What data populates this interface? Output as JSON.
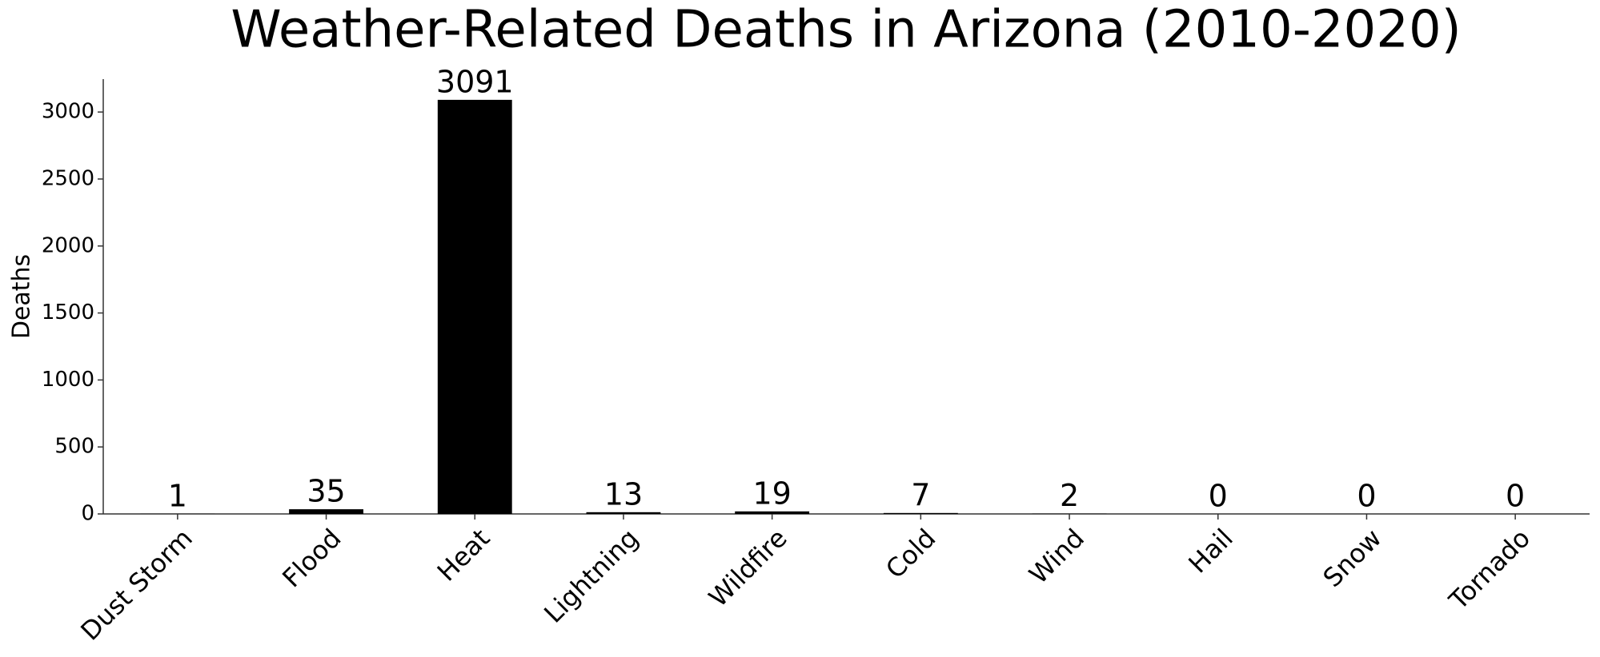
{
  "chart_data": {
    "type": "bar",
    "title": "Weather-Related Deaths in Arizona (2010-2020)",
    "y_label": "Deaths",
    "categories": [
      "Dust Storm",
      "Flood",
      "Heat",
      "Lightning",
      "Wildfire",
      "Cold",
      "Wind",
      "Hail",
      "Snow",
      "Tornado"
    ],
    "values": [
      1,
      35,
      3091,
      13,
      19,
      7,
      2,
      0,
      0,
      0
    ],
    "color": "#000000",
    "ylim": [
      0,
      3245.55
    ],
    "yticks": [
      0,
      500,
      1000,
      1500,
      2000,
      2500,
      3000
    ],
    "grid": false
  }
}
